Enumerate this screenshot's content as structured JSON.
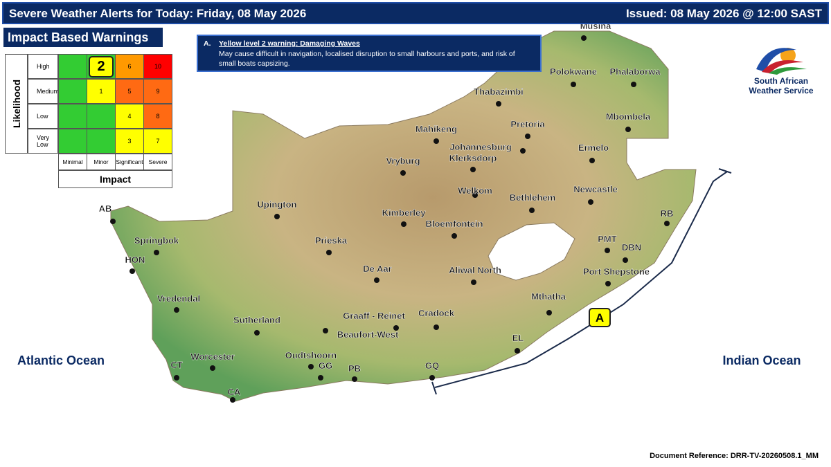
{
  "header": {
    "title": "Severe Weather Alerts for Today: Friday, 08 May 2026",
    "issued": "Issued: 08 May 2026 @ 12:00 SAST"
  },
  "matrix": {
    "title": "Impact Based Warnings",
    "y_label": "Likelihood",
    "x_label": "Impact",
    "columns": [
      "Minimal",
      "Minor",
      "Significant",
      "Severe"
    ],
    "rows": [
      {
        "label": "High",
        "cells": [
          null,
          2,
          6,
          10
        ]
      },
      {
        "label": "Medium",
        "cells": [
          null,
          1,
          5,
          9
        ]
      },
      {
        "label": "Low",
        "cells": [
          null,
          null,
          4,
          8
        ]
      },
      {
        "label": "Very Low",
        "cells": [
          null,
          null,
          3,
          7
        ]
      }
    ]
  },
  "warning": {
    "letter": "A.",
    "title": "Yellow level 2 warning: Damaging Waves",
    "text": "May cause difficult in navigation, localised disruption to small harbours and ports, and risk of small boats capsizing."
  },
  "logo": {
    "line1": "South African",
    "line2": "Weather Service"
  },
  "places": [
    "Musina",
    "Polokwane",
    "Phalaborwa",
    "Thabazimbi",
    "Mbombela",
    "Pretoria",
    "Mahikeng",
    "Johannesburg",
    "Ermelo",
    "Vryburg",
    "Klerksdorp",
    "Welkom",
    "Newcastle",
    "Bethlehem",
    "Upington",
    "AB",
    "RB",
    "Kimberley",
    "Bloemfontein",
    "PMT",
    "DBN",
    "Springbok",
    "Prieska",
    "HON",
    "Aliwal North",
    "De Aar",
    "Port Shepstone",
    "Vredendal",
    "Mthatha",
    "Sutherland",
    "Graaff - Reinet",
    "Cradock",
    "Beaufort-West",
    "EL",
    "Worcester",
    "Oudtshoorn",
    "CT",
    "GG",
    "PB",
    "GQ",
    "CA"
  ],
  "oceans": [
    "Atlantic Ocean",
    "Indian Ocean"
  ],
  "zone_label": "A",
  "footer": "Document Reference: DRR-TV-20260508.1_MM"
}
